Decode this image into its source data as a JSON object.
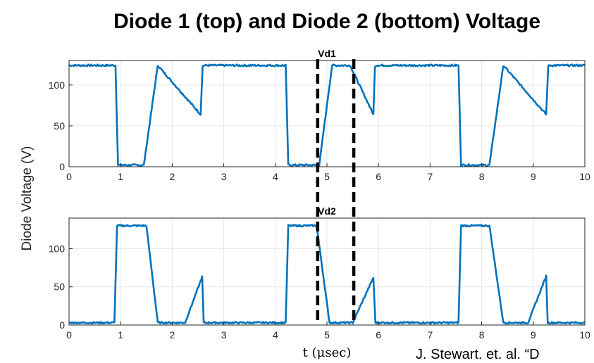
{
  "figure_title": "Diode 1 (top) and Diode 2 (bottom) Voltage",
  "ylabel": "Diode Voltage (V)",
  "xlabel": "t (μsec)",
  "citation": "J. Stewart. et. al. “D",
  "colors": {
    "series": "#0072BD",
    "marker": "#000000"
  },
  "chart_data": [
    {
      "type": "line",
      "title": "Vd1",
      "xlim": [
        0,
        10
      ],
      "ylim": [
        0,
        130
      ],
      "xticks": [
        "0",
        "1",
        "2",
        "3",
        "4",
        "5",
        "6",
        "7",
        "8",
        "9",
        "10"
      ],
      "yticks": [
        "0",
        "50",
        "100"
      ],
      "grid": true,
      "series": [
        {
          "x": [
            0,
            0.9,
            0.95,
            1.45,
            1.72,
            2.55,
            2.59,
            2.62,
            4.2,
            4.25,
            4.85,
            5.1,
            5.45,
            5.9,
            5.93,
            5.96,
            7.55,
            7.6,
            8.15,
            8.42,
            9.25,
            9.29,
            9.32,
            10
          ],
          "y": [
            124,
            124,
            2,
            2,
            124,
            64,
            123,
            124,
            124,
            2,
            2,
            124,
            124,
            64,
            123,
            124,
            124,
            2,
            2,
            124,
            64,
            123,
            124,
            124
          ]
        }
      ],
      "markers_x": [
        4.82,
        5.52
      ]
    },
    {
      "type": "line",
      "title": "Vd2",
      "xlim": [
        0,
        10
      ],
      "ylim": [
        0,
        140
      ],
      "xticks": [
        "0",
        "1",
        "2",
        "3",
        "4",
        "5",
        "6",
        "7",
        "8",
        "9",
        "10"
      ],
      "yticks": [
        "0",
        "50",
        "100"
      ],
      "grid": true,
      "series": [
        {
          "x": [
            0,
            0.88,
            0.93,
            1.5,
            1.72,
            2.25,
            2.58,
            2.61,
            4.2,
            4.25,
            4.8,
            5.05,
            5.5,
            5.9,
            5.94,
            7.55,
            7.6,
            8.15,
            8.42,
            8.9,
            9.25,
            9.28,
            10
          ],
          "y": [
            3,
            3,
            130,
            130,
            3,
            3,
            63,
            3,
            3,
            130,
            130,
            3,
            3,
            62,
            3,
            3,
            130,
            130,
            3,
            3,
            64,
            3,
            3
          ]
        }
      ],
      "markers_x": [
        4.82,
        5.52
      ]
    }
  ]
}
